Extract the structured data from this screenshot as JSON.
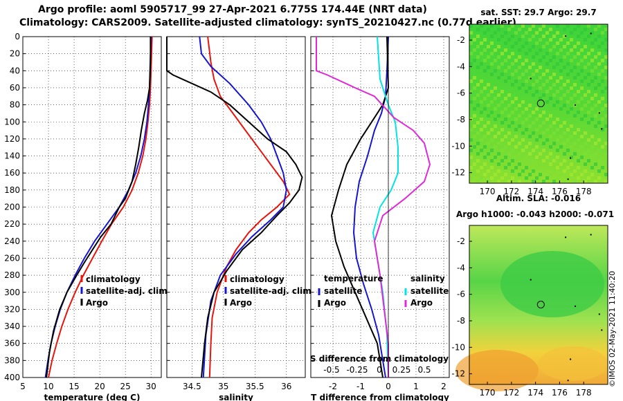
{
  "header": {
    "line1": "Argo profile: aoml 5905717_99 27-Apr-2021 6.775S 174.44E (NRT data)",
    "line2": "Climatology: CARS2009. Satellite-adjusted climatology: synTS_20210427.nc (0.77d earlier)"
  },
  "depth_ticks": [
    0,
    20,
    40,
    60,
    80,
    100,
    120,
    140,
    160,
    180,
    200,
    220,
    240,
    260,
    280,
    300,
    320,
    340,
    360,
    380,
    400
  ],
  "chart_data": [
    {
      "type": "line",
      "name": "temperature-profile",
      "xlabel": "temperature (deg C)",
      "ylabel": "depth",
      "xlim": [
        5,
        32
      ],
      "ylim": [
        400,
        0
      ],
      "xticks": [
        5,
        10,
        15,
        20,
        25,
        30
      ],
      "grid": true,
      "legend": [
        "climatology",
        "satellite-adj. clim.",
        "Argo"
      ],
      "series": [
        {
          "name": "climatology",
          "color": "#e8140c",
          "points": [
            [
              30.2,
              0
            ],
            [
              30.1,
              20
            ],
            [
              30.0,
              40
            ],
            [
              29.9,
              60
            ],
            [
              29.7,
              80
            ],
            [
              29.4,
              100
            ],
            [
              29.0,
              120
            ],
            [
              28.4,
              140
            ],
            [
              27.5,
              160
            ],
            [
              26.3,
              180
            ],
            [
              24.6,
              200
            ],
            [
              22.3,
              220
            ],
            [
              20.4,
              240
            ],
            [
              18.6,
              260
            ],
            [
              16.8,
              280
            ],
            [
              15.2,
              300
            ],
            [
              13.8,
              320
            ],
            [
              12.6,
              340
            ],
            [
              11.6,
              360
            ],
            [
              10.7,
              380
            ],
            [
              10.0,
              400
            ]
          ]
        },
        {
          "name": "satellite-adj. clim.",
          "color": "#1414d2",
          "points": [
            [
              30.0,
              0
            ],
            [
              29.9,
              20
            ],
            [
              29.8,
              40
            ],
            [
              29.7,
              60
            ],
            [
              29.5,
              80
            ],
            [
              29.2,
              100
            ],
            [
              28.7,
              120
            ],
            [
              28.0,
              140
            ],
            [
              27.0,
              160
            ],
            [
              25.6,
              180
            ],
            [
              23.8,
              200
            ],
            [
              21.4,
              220
            ],
            [
              19.0,
              240
            ],
            [
              17.0,
              260
            ],
            [
              15.2,
              280
            ],
            [
              13.6,
              300
            ],
            [
              12.3,
              320
            ],
            [
              11.3,
              340
            ],
            [
              10.5,
              360
            ],
            [
              9.9,
              380
            ],
            [
              9.4,
              400
            ]
          ]
        },
        {
          "name": "Argo",
          "color": "#000000",
          "points": [
            [
              29.9,
              0
            ],
            [
              29.9,
              30
            ],
            [
              29.7,
              60
            ],
            [
              29.3,
              75
            ],
            [
              28.7,
              90
            ],
            [
              28.1,
              110
            ],
            [
              27.6,
              130
            ],
            [
              27.0,
              150
            ],
            [
              26.3,
              170
            ],
            [
              25.0,
              190
            ],
            [
              23.8,
              200
            ],
            [
              22.2,
              220
            ],
            [
              20.2,
              235
            ],
            [
              18.6,
              250
            ],
            [
              17.0,
              265
            ],
            [
              15.5,
              280
            ],
            [
              13.6,
              300
            ],
            [
              12.2,
              320
            ],
            [
              11.0,
              345
            ],
            [
              10.2,
              370
            ],
            [
              9.6,
              400
            ]
          ]
        }
      ]
    },
    {
      "type": "line",
      "name": "salinity-profile",
      "xlabel": "salinity",
      "xlim": [
        34.1,
        36.3
      ],
      "ylim": [
        400,
        0
      ],
      "xticks": [
        34.5,
        35,
        35.5,
        36
      ],
      "grid": true,
      "legend": [
        "climatology",
        "satellite-adj. clim.",
        "Argo"
      ],
      "series": [
        {
          "name": "climatology",
          "color": "#e8140c",
          "points": [
            [
              34.75,
              0
            ],
            [
              34.8,
              30
            ],
            [
              34.85,
              50
            ],
            [
              34.95,
              70
            ],
            [
              35.15,
              90
            ],
            [
              35.35,
              110
            ],
            [
              35.55,
              130
            ],
            [
              35.75,
              150
            ],
            [
              35.95,
              170
            ],
            [
              36.05,
              185
            ],
            [
              35.85,
              200
            ],
            [
              35.6,
              215
            ],
            [
              35.4,
              230
            ],
            [
              35.2,
              250
            ],
            [
              35.05,
              270
            ],
            [
              34.9,
              300
            ],
            [
              34.82,
              330
            ],
            [
              34.8,
              360
            ],
            [
              34.78,
              400
            ]
          ]
        },
        {
          "name": "satellite-adj. clim.",
          "color": "#1414d2",
          "points": [
            [
              34.62,
              0
            ],
            [
              34.65,
              20
            ],
            [
              34.8,
              35
            ],
            [
              35.1,
              55
            ],
            [
              35.4,
              80
            ],
            [
              35.6,
              100
            ],
            [
              35.75,
              120
            ],
            [
              35.85,
              140
            ],
            [
              35.95,
              160
            ],
            [
              36.0,
              180
            ],
            [
              35.95,
              200
            ],
            [
              35.75,
              215
            ],
            [
              35.45,
              235
            ],
            [
              35.2,
              255
            ],
            [
              34.95,
              280
            ],
            [
              34.8,
              310
            ],
            [
              34.72,
              350
            ],
            [
              34.68,
              400
            ]
          ]
        },
        {
          "name": "Argo",
          "color": "#000000",
          "points": [
            [
              34.1,
              0
            ],
            [
              34.1,
              40
            ],
            [
              34.2,
              45
            ],
            [
              34.5,
              55
            ],
            [
              34.8,
              65
            ],
            [
              35.1,
              80
            ],
            [
              35.4,
              100
            ],
            [
              35.7,
              120
            ],
            [
              36.0,
              135
            ],
            [
              36.15,
              150
            ],
            [
              36.25,
              165
            ],
            [
              36.2,
              180
            ],
            [
              36.05,
              195
            ],
            [
              35.85,
              210
            ],
            [
              35.6,
              230
            ],
            [
              35.3,
              250
            ],
            [
              35.05,
              275
            ],
            [
              34.85,
              300
            ],
            [
              34.75,
              330
            ],
            [
              34.7,
              360
            ],
            [
              34.65,
              400
            ]
          ]
        }
      ]
    },
    {
      "type": "line",
      "name": "difference-from-climatology",
      "xlabel": "T difference from climatology",
      "x2label": "S difference from climatology",
      "xlim": [
        -2.8,
        2.2
      ],
      "ylim": [
        400,
        0
      ],
      "xticks": [
        -2,
        -1,
        0,
        1,
        2
      ],
      "x2ticks": [
        "-0.5",
        "-0.25",
        "0",
        "0.25",
        "0.5"
      ],
      "grid": true,
      "legend_groups": [
        {
          "title": "temperature",
          "items": [
            "satellite",
            "Argo"
          ]
        },
        {
          "title": "salinity",
          "items": [
            "satellite",
            "Argo"
          ]
        }
      ],
      "series": [
        {
          "name": "temperature satellite",
          "color": "#1414d2",
          "points": [
            [
              0.0,
              0
            ],
            [
              -0.05,
              40
            ],
            [
              -0.1,
              70
            ],
            [
              -0.25,
              90
            ],
            [
              -0.5,
              110
            ],
            [
              -0.75,
              140
            ],
            [
              -1.05,
              170
            ],
            [
              -1.2,
              200
            ],
            [
              -1.25,
              230
            ],
            [
              -1.15,
              260
            ],
            [
              -0.9,
              290
            ],
            [
              -0.6,
              320
            ],
            [
              -0.35,
              350
            ],
            [
              -0.2,
              380
            ],
            [
              -0.1,
              400
            ]
          ]
        },
        {
          "name": "temperature Argo",
          "color": "#000000",
          "points": [
            [
              -0.05,
              0
            ],
            [
              0.0,
              60
            ],
            [
              -0.2,
              80
            ],
            [
              -0.6,
              100
            ],
            [
              -1.0,
              120
            ],
            [
              -1.5,
              150
            ],
            [
              -1.8,
              180
            ],
            [
              -2.05,
              210
            ],
            [
              -1.9,
              240
            ],
            [
              -1.6,
              270
            ],
            [
              -1.2,
              300
            ],
            [
              -0.8,
              330
            ],
            [
              -0.4,
              360
            ],
            [
              -0.2,
              400
            ]
          ]
        },
        {
          "name": "salinity satellite",
          "color": "#00e4e4",
          "points": [
            [
              -0.4,
              0
            ],
            [
              -0.3,
              50
            ],
            [
              0.0,
              80
            ],
            [
              0.25,
              100
            ],
            [
              0.35,
              130
            ],
            [
              0.35,
              160
            ],
            [
              0.1,
              180
            ],
            [
              -0.3,
              200
            ],
            [
              -0.55,
              230
            ],
            [
              -0.4,
              260
            ],
            [
              -0.2,
              300
            ],
            [
              -0.05,
              350
            ],
            [
              0.0,
              400
            ]
          ]
        },
        {
          "name": "salinity Argo",
          "color": "#e028d8",
          "points": [
            [
              -2.6,
              0
            ],
            [
              -2.6,
              40
            ],
            [
              -2.2,
              45
            ],
            [
              -1.2,
              60
            ],
            [
              -0.5,
              70
            ],
            [
              0.2,
              95
            ],
            [
              0.9,
              110
            ],
            [
              1.3,
              125
            ],
            [
              1.5,
              150
            ],
            [
              1.3,
              170
            ],
            [
              0.6,
              190
            ],
            [
              -0.2,
              210
            ],
            [
              -0.5,
              240
            ],
            [
              -0.3,
              280
            ],
            [
              -0.15,
              320
            ],
            [
              0.0,
              360
            ],
            [
              0.0,
              400
            ]
          ]
        }
      ]
    },
    {
      "type": "heatmap",
      "name": "sst-map",
      "title": "sat. SST: 29.7 Argo: 29.7",
      "xticks": [
        170,
        172,
        174,
        176,
        178
      ],
      "yticks": [
        -2,
        -4,
        -6,
        -8,
        -10,
        -12
      ],
      "xlim": [
        168.5,
        180
      ],
      "ylim": [
        -12.8,
        -0.8
      ],
      "profile_marker": [
        174.44,
        -6.775
      ]
    },
    {
      "type": "heatmap",
      "name": "sla-map",
      "title": "Altim. SLA: -0.016",
      "subtitle": "Argo h1000: -0.043 h2000: -0.071",
      "xticks": [
        170,
        172,
        174,
        176,
        178
      ],
      "yticks": [
        -2,
        -4,
        -6,
        -8,
        -10,
        -12
      ],
      "xlim": [
        168.5,
        180
      ],
      "ylim": [
        -12.8,
        -0.8
      ],
      "profile_marker": [
        174.44,
        -6.775
      ]
    }
  ],
  "footer": {
    "stamp": "©IMOS 02-May-2021 11:40:20"
  }
}
